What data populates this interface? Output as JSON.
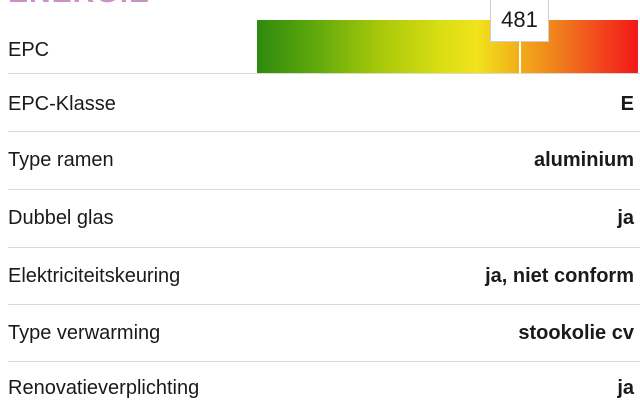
{
  "section": {
    "title": "ENERGIE"
  },
  "epc": {
    "label": "EPC",
    "score": "481",
    "score_fraction": 0.69
  },
  "rows": [
    {
      "label": "EPC-Klasse",
      "value": "E"
    },
    {
      "label": "Type ramen",
      "value": "aluminium"
    },
    {
      "label": "Dubbel glas",
      "value": "ja"
    },
    {
      "label": "Elektriciteitskeuring",
      "value": "ja, niet conform"
    },
    {
      "label": "Type verwarming",
      "value": "stookolie cv"
    },
    {
      "label": "Renovatieverplichting",
      "value": "ja"
    }
  ]
}
